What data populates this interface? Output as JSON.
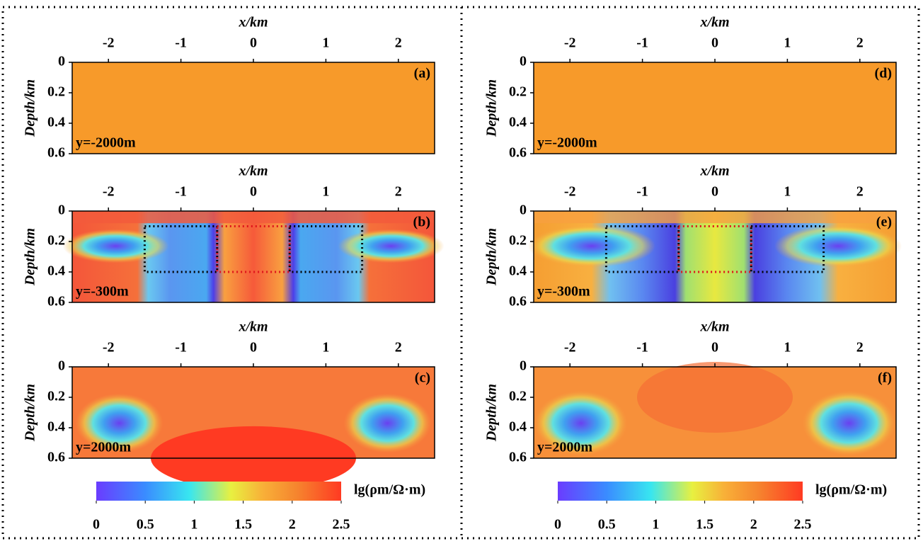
{
  "chart_data": [
    {
      "type": "heatmap",
      "panel_label": "(a)",
      "annotation": "y=-2000m",
      "xlabel": "x/km",
      "ylabel": "Depth/km",
      "xlim": [
        -2.5,
        2.5
      ],
      "xticks": [
        -2,
        -1,
        0,
        1,
        2
      ],
      "ylim": [
        0,
        0.6
      ],
      "yticks": [
        0,
        0.2,
        0.4,
        0.6
      ]
    },
    {
      "type": "heatmap",
      "panel_label": "(b)",
      "annotation": "y=-300m",
      "xlabel": "x/km",
      "ylabel": "Depth/km",
      "xlim": [
        -2.5,
        2.5
      ],
      "xticks": [
        -2,
        -1,
        0,
        1,
        2
      ],
      "ylim": [
        0,
        0.6
      ],
      "yticks": [
        0,
        0.2,
        0.4,
        0.6
      ],
      "boxes": [
        {
          "x": [
            -1.5,
            -0.5
          ],
          "y": [
            0.1,
            0.4
          ],
          "color": "#000000"
        },
        {
          "x": [
            -0.5,
            0.5
          ],
          "y": [
            0.1,
            0.4
          ],
          "color": "#e0151b"
        },
        {
          "x": [
            0.5,
            1.5
          ],
          "y": [
            0.1,
            0.4
          ],
          "color": "#000000"
        }
      ]
    },
    {
      "type": "heatmap",
      "panel_label": "(c)",
      "annotation": "y=2000m",
      "xlabel": "x/km",
      "ylabel": "Depth/km",
      "xlim": [
        -2.5,
        2.5
      ],
      "xticks": [
        -2,
        -1,
        0,
        1,
        2
      ],
      "ylim": [
        0,
        0.6
      ],
      "yticks": [
        0,
        0.2,
        0.4,
        0.6
      ]
    },
    {
      "type": "heatmap",
      "panel_label": "(d)",
      "annotation": "y=-2000m",
      "xlabel": "x/km",
      "ylabel": "Depth/km",
      "xlim": [
        -2.5,
        2.5
      ],
      "xticks": [
        -2,
        -1,
        0,
        1,
        2
      ],
      "ylim": [
        0,
        0.6
      ],
      "yticks": [
        0,
        0.2,
        0.4,
        0.6
      ]
    },
    {
      "type": "heatmap",
      "panel_label": "(e)",
      "annotation": "y=-300m",
      "xlabel": "x/km",
      "ylabel": "Depth/km",
      "xlim": [
        -2.5,
        2.5
      ],
      "xticks": [
        -2,
        -1,
        0,
        1,
        2
      ],
      "ylim": [
        0,
        0.6
      ],
      "yticks": [
        0,
        0.2,
        0.4,
        0.6
      ],
      "boxes": [
        {
          "x": [
            -1.5,
            -0.5
          ],
          "y": [
            0.1,
            0.4
          ],
          "color": "#000000"
        },
        {
          "x": [
            -0.5,
            0.5
          ],
          "y": [
            0.1,
            0.4
          ],
          "color": "#e0151b"
        },
        {
          "x": [
            0.5,
            1.5
          ],
          "y": [
            0.1,
            0.4
          ],
          "color": "#000000"
        }
      ]
    },
    {
      "type": "heatmap",
      "panel_label": "(f)",
      "annotation": "y=2000m",
      "xlabel": "x/km",
      "ylabel": "Depth/km",
      "xlim": [
        -2.5,
        2.5
      ],
      "xticks": [
        -2,
        -1,
        0,
        1,
        2
      ],
      "ylim": [
        0,
        0.6
      ],
      "yticks": [
        0,
        0.2,
        0.4,
        0.6
      ]
    },
    {
      "type": "colorbar",
      "label": "lg(ρm/Ω·m)",
      "xlim": [
        0,
        2.5
      ],
      "xticks": [
        0,
        0.5,
        1,
        1.5,
        2,
        2.5
      ]
    },
    {
      "type": "colorbar",
      "label": "lg(ρm/Ω·m)",
      "xlim": [
        0,
        2.5
      ],
      "xticks": [
        0,
        0.5,
        1,
        1.5,
        2,
        2.5
      ]
    }
  ]
}
